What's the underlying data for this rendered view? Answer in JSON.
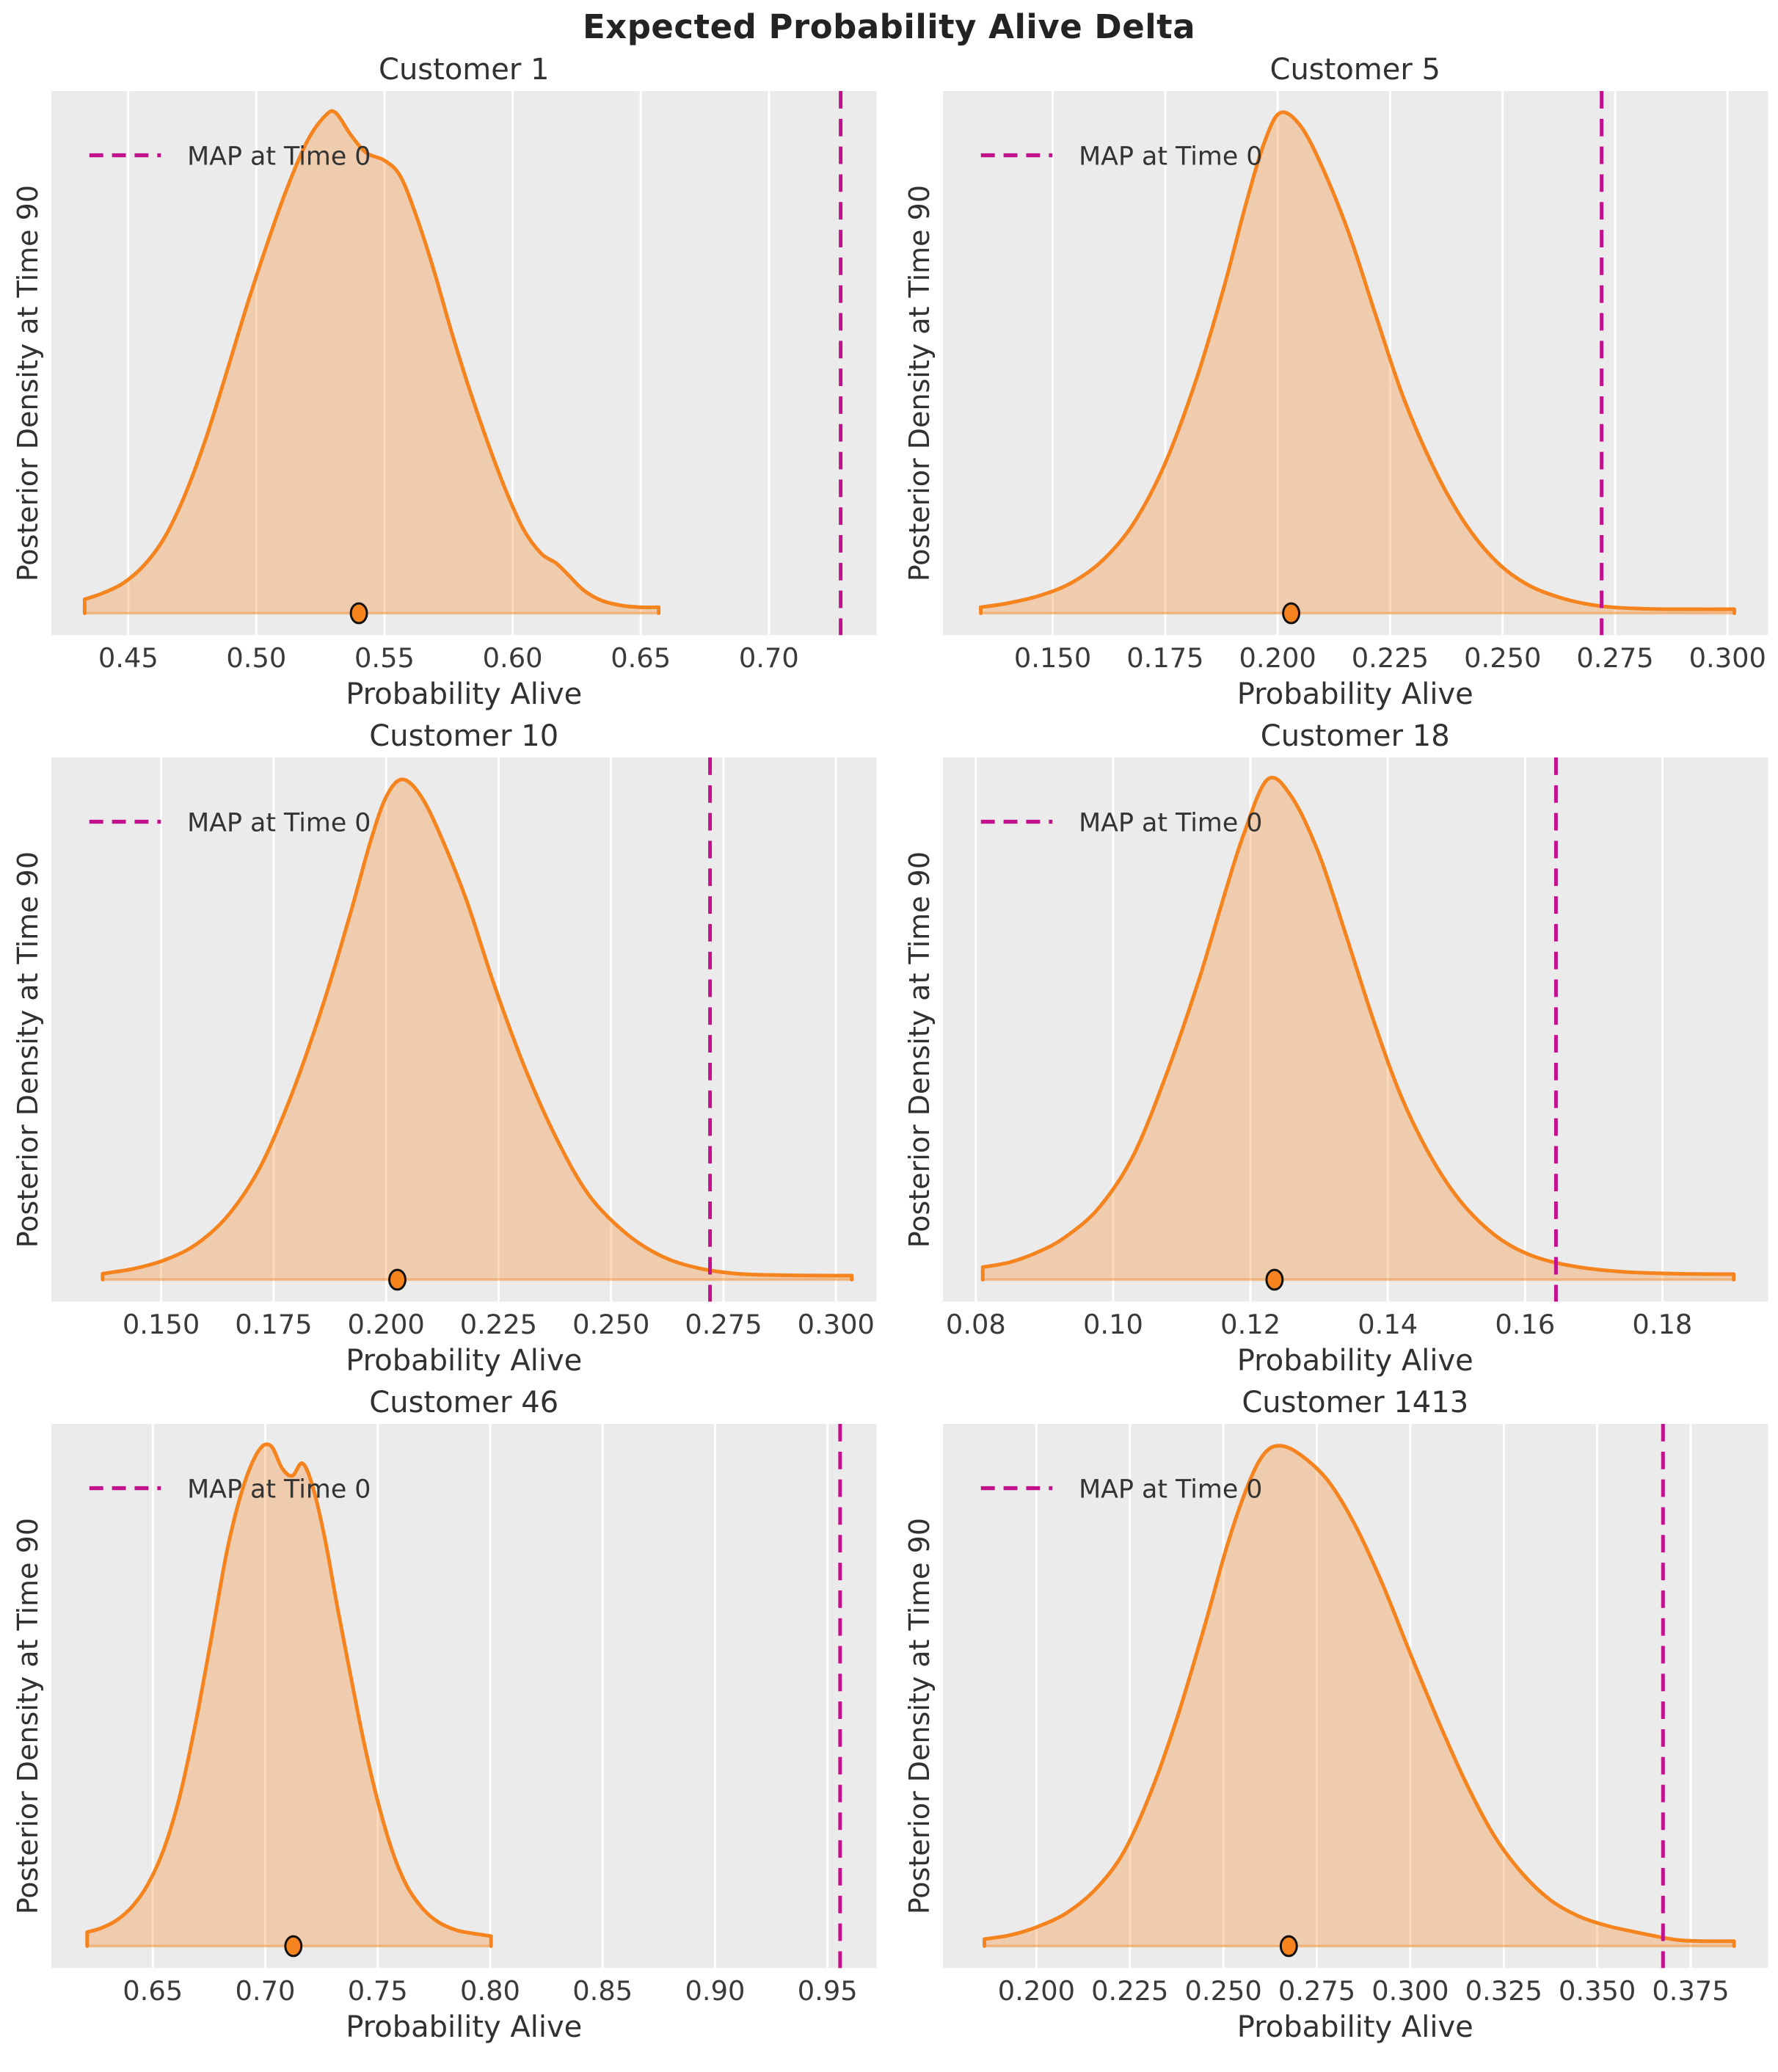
{
  "suptitle": "Expected Probability Alive Delta",
  "xlabel": "Probability Alive",
  "ylabel": "Posterior Density at Time 90",
  "legend_label": "MAP at Time 0",
  "colors": {
    "curve": "#F5831E",
    "fill_opacity": 0.3,
    "map_line": "#C2118C",
    "plot_bg": "#EBEBEB",
    "grid": "#FFFFFF",
    "tick_text": "#3A3A3A",
    "legend_text": "#333333",
    "marker_edge": "#111111"
  },
  "chart_data": [
    {
      "type": "area",
      "title": "Customer 1",
      "xlabel": "Probability Alive",
      "ylabel": "Posterior Density at Time 90",
      "legend": "MAP at Time 0",
      "xlim": [
        0.42,
        0.742
      ],
      "xticks": [
        0.45,
        0.5,
        0.55,
        0.6,
        0.65,
        0.7
      ],
      "xtick_labels": [
        "0.45",
        "0.50",
        "0.55",
        "0.60",
        "0.65",
        "0.70"
      ],
      "map_at_time_0": 0.728,
      "sample_marker_x": 0.54,
      "curve": [
        [
          0.433,
          0.028
        ],
        [
          0.44,
          0.04
        ],
        [
          0.448,
          0.06
        ],
        [
          0.456,
          0.095
        ],
        [
          0.464,
          0.15
        ],
        [
          0.472,
          0.235
        ],
        [
          0.48,
          0.345
        ],
        [
          0.488,
          0.475
        ],
        [
          0.496,
          0.61
        ],
        [
          0.504,
          0.735
        ],
        [
          0.512,
          0.85
        ],
        [
          0.52,
          0.945
        ],
        [
          0.527,
          0.995
        ],
        [
          0.531,
          1.0
        ],
        [
          0.537,
          0.955
        ],
        [
          0.543,
          0.92
        ],
        [
          0.55,
          0.905
        ],
        [
          0.556,
          0.875
        ],
        [
          0.562,
          0.8
        ],
        [
          0.569,
          0.69
        ],
        [
          0.576,
          0.565
        ],
        [
          0.583,
          0.45
        ],
        [
          0.59,
          0.345
        ],
        [
          0.597,
          0.25
        ],
        [
          0.604,
          0.17
        ],
        [
          0.611,
          0.12
        ],
        [
          0.617,
          0.1
        ],
        [
          0.622,
          0.075
        ],
        [
          0.628,
          0.045
        ],
        [
          0.635,
          0.025
        ],
        [
          0.643,
          0.015
        ],
        [
          0.65,
          0.012
        ],
        [
          0.657,
          0.012
        ]
      ]
    },
    {
      "type": "area",
      "title": "Customer 5",
      "xlabel": "Probability Alive",
      "ylabel": "Posterior Density at Time 90",
      "legend": "MAP at Time 0",
      "xlim": [
        0.1256,
        0.309
      ],
      "xticks": [
        0.15,
        0.175,
        0.2,
        0.225,
        0.25,
        0.275,
        0.3
      ],
      "xtick_labels": [
        "0.150",
        "0.175",
        "0.200",
        "0.225",
        "0.250",
        "0.275",
        "0.300"
      ],
      "map_at_time_0": 0.272,
      "sample_marker_x": 0.203,
      "curve": [
        [
          0.134,
          0.012
        ],
        [
          0.14,
          0.02
        ],
        [
          0.147,
          0.035
        ],
        [
          0.154,
          0.06
        ],
        [
          0.161,
          0.105
        ],
        [
          0.168,
          0.18
        ],
        [
          0.175,
          0.3
        ],
        [
          0.182,
          0.47
        ],
        [
          0.188,
          0.65
        ],
        [
          0.193,
          0.82
        ],
        [
          0.197,
          0.94
        ],
        [
          0.2005,
          1.0
        ],
        [
          0.205,
          0.975
        ],
        [
          0.21,
          0.89
        ],
        [
          0.216,
          0.755
        ],
        [
          0.222,
          0.59
        ],
        [
          0.228,
          0.43
        ],
        [
          0.235,
          0.285
        ],
        [
          0.242,
          0.175
        ],
        [
          0.249,
          0.1
        ],
        [
          0.256,
          0.055
        ],
        [
          0.264,
          0.028
        ],
        [
          0.272,
          0.014
        ],
        [
          0.281,
          0.009
        ],
        [
          0.291,
          0.008
        ],
        [
          0.3015,
          0.008
        ]
      ]
    },
    {
      "type": "area",
      "title": "Customer 10",
      "xlabel": "Probability Alive",
      "ylabel": "Posterior Density at Time 90",
      "legend": "MAP at Time 0",
      "xlim": [
        0.1256,
        0.309
      ],
      "xticks": [
        0.15,
        0.175,
        0.2,
        0.225,
        0.25,
        0.275,
        0.3
      ],
      "xtick_labels": [
        "0.150",
        "0.175",
        "0.200",
        "0.225",
        "0.250",
        "0.275",
        "0.300"
      ],
      "map_at_time_0": 0.272,
      "sample_marker_x": 0.2025,
      "curve": [
        [
          0.137,
          0.012
        ],
        [
          0.144,
          0.022
        ],
        [
          0.151,
          0.04
        ],
        [
          0.158,
          0.072
        ],
        [
          0.165,
          0.13
        ],
        [
          0.172,
          0.225
        ],
        [
          0.179,
          0.37
        ],
        [
          0.186,
          0.55
        ],
        [
          0.192,
          0.73
        ],
        [
          0.1965,
          0.875
        ],
        [
          0.2,
          0.965
        ],
        [
          0.2035,
          1.0
        ],
        [
          0.2075,
          0.97
        ],
        [
          0.212,
          0.89
        ],
        [
          0.218,
          0.755
        ],
        [
          0.224,
          0.59
        ],
        [
          0.231,
          0.42
        ],
        [
          0.238,
          0.28
        ],
        [
          0.245,
          0.17
        ],
        [
          0.253,
          0.095
        ],
        [
          0.261,
          0.048
        ],
        [
          0.269,
          0.024
        ],
        [
          0.278,
          0.012
        ],
        [
          0.288,
          0.009
        ],
        [
          0.3035,
          0.008
        ]
      ]
    },
    {
      "type": "area",
      "title": "Customer 18",
      "xlabel": "Probability Alive",
      "ylabel": "Posterior Density at Time 90",
      "legend": "MAP at Time 0",
      "xlim": [
        0.0752,
        0.1954
      ],
      "xticks": [
        0.08,
        0.1,
        0.12,
        0.14,
        0.16,
        0.18
      ],
      "xtick_labels": [
        "0.08",
        "0.10",
        "0.12",
        "0.14",
        "0.16",
        "0.18"
      ],
      "map_at_time_0": 0.1645,
      "sample_marker_x": 0.1235,
      "curve": [
        [
          0.081,
          0.025
        ],
        [
          0.085,
          0.035
        ],
        [
          0.089,
          0.055
        ],
        [
          0.093,
          0.085
        ],
        [
          0.098,
          0.145
        ],
        [
          0.103,
          0.25
        ],
        [
          0.108,
          0.42
        ],
        [
          0.1125,
          0.6
        ],
        [
          0.116,
          0.76
        ],
        [
          0.119,
          0.89
        ],
        [
          0.1225,
          1.0
        ],
        [
          0.126,
          0.965
        ],
        [
          0.13,
          0.85
        ],
        [
          0.134,
          0.685
        ],
        [
          0.138,
          0.515
        ],
        [
          0.142,
          0.365
        ],
        [
          0.1465,
          0.24
        ],
        [
          0.151,
          0.15
        ],
        [
          0.156,
          0.085
        ],
        [
          0.161,
          0.048
        ],
        [
          0.167,
          0.027
        ],
        [
          0.174,
          0.016
        ],
        [
          0.182,
          0.012
        ],
        [
          0.1904,
          0.011
        ]
      ]
    },
    {
      "type": "area",
      "title": "Customer 46",
      "xlabel": "Probability Alive",
      "ylabel": "Posterior Density at Time 90",
      "legend": "MAP at Time 0",
      "xlim": [
        0.6049,
        0.9718
      ],
      "xticks": [
        0.65,
        0.7,
        0.75,
        0.8,
        0.85,
        0.9,
        0.95
      ],
      "xtick_labels": [
        "0.65",
        "0.70",
        "0.75",
        "0.80",
        "0.85",
        "0.90",
        "0.95"
      ],
      "map_at_time_0": 0.9556,
      "sample_marker_x": 0.7125,
      "curve": [
        [
          0.6208,
          0.028
        ],
        [
          0.627,
          0.036
        ],
        [
          0.634,
          0.052
        ],
        [
          0.641,
          0.08
        ],
        [
          0.648,
          0.125
        ],
        [
          0.655,
          0.195
        ],
        [
          0.662,
          0.3
        ],
        [
          0.669,
          0.445
        ],
        [
          0.676,
          0.615
        ],
        [
          0.683,
          0.79
        ],
        [
          0.69,
          0.915
        ],
        [
          0.697,
          0.99
        ],
        [
          0.7025,
          1.0
        ],
        [
          0.7075,
          0.955
        ],
        [
          0.712,
          0.94
        ],
        [
          0.7165,
          0.965
        ],
        [
          0.721,
          0.92
        ],
        [
          0.7265,
          0.815
        ],
        [
          0.732,
          0.68
        ],
        [
          0.738,
          0.54
        ],
        [
          0.744,
          0.405
        ],
        [
          0.75,
          0.29
        ],
        [
          0.7565,
          0.19
        ],
        [
          0.763,
          0.12
        ],
        [
          0.77,
          0.075
        ],
        [
          0.777,
          0.048
        ],
        [
          0.785,
          0.032
        ],
        [
          0.793,
          0.025
        ],
        [
          0.8004,
          0.02
        ]
      ]
    },
    {
      "type": "area",
      "title": "Customer 1413",
      "xlabel": "Probability Alive",
      "ylabel": "Posterior Density at Time 90",
      "legend": "MAP at Time 0",
      "xlim": [
        0.175,
        0.3957
      ],
      "xticks": [
        0.2,
        0.225,
        0.25,
        0.275,
        0.3,
        0.325,
        0.35,
        0.375
      ],
      "xtick_labels": [
        "0.200",
        "0.225",
        "0.250",
        "0.275",
        "0.300",
        "0.325",
        "0.350",
        "0.375"
      ],
      "map_at_time_0": 0.3676,
      "sample_marker_x": 0.2675,
      "curve": [
        [
          0.1861,
          0.014
        ],
        [
          0.193,
          0.022
        ],
        [
          0.2,
          0.038
        ],
        [
          0.208,
          0.066
        ],
        [
          0.216,
          0.115
        ],
        [
          0.2235,
          0.19
        ],
        [
          0.231,
          0.315
        ],
        [
          0.238,
          0.465
        ],
        [
          0.245,
          0.64
        ],
        [
          0.251,
          0.8
        ],
        [
          0.2565,
          0.92
        ],
        [
          0.261,
          0.985
        ],
        [
          0.2655,
          1.0
        ],
        [
          0.271,
          0.98
        ],
        [
          0.278,
          0.93
        ],
        [
          0.285,
          0.845
        ],
        [
          0.2925,
          0.725
        ],
        [
          0.3,
          0.585
        ],
        [
          0.3075,
          0.45
        ],
        [
          0.315,
          0.325
        ],
        [
          0.3225,
          0.22
        ],
        [
          0.33,
          0.145
        ],
        [
          0.3375,
          0.092
        ],
        [
          0.345,
          0.06
        ],
        [
          0.352,
          0.042
        ],
        [
          0.359,
          0.03
        ],
        [
          0.3655,
          0.02
        ],
        [
          0.372,
          0.012
        ],
        [
          0.379,
          0.01
        ],
        [
          0.3866,
          0.01
        ]
      ]
    }
  ]
}
